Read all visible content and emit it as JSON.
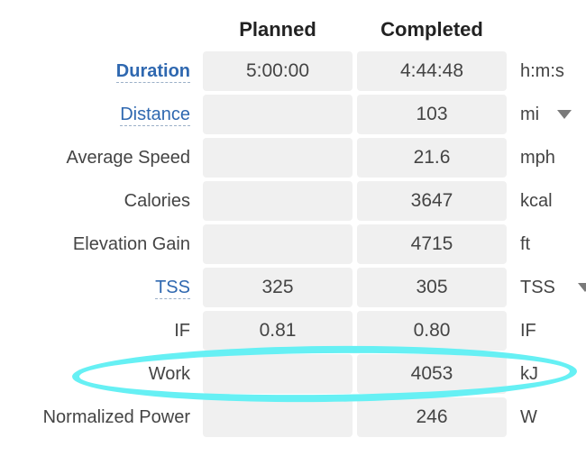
{
  "headers": {
    "planned": "Planned",
    "completed": "Completed"
  },
  "rows": [
    {
      "label": "Duration",
      "planned": "5:00:00",
      "completed": "4:44:48",
      "unit": "h:m:s"
    },
    {
      "label": "Distance",
      "planned": "",
      "completed": "103",
      "unit": "mi"
    },
    {
      "label": "Average Speed",
      "planned": "",
      "completed": "21.6",
      "unit": "mph"
    },
    {
      "label": "Calories",
      "planned": "",
      "completed": "3647",
      "unit": "kcal"
    },
    {
      "label": "Elevation Gain",
      "planned": "",
      "completed": "4715",
      "unit": "ft"
    },
    {
      "label": "TSS",
      "planned": "325",
      "completed": "305",
      "unit": "TSS"
    },
    {
      "label": "IF",
      "planned": "0.81",
      "completed": "0.80",
      "unit": "IF"
    },
    {
      "label": "Work",
      "planned": "",
      "completed": "4053",
      "unit": "kJ"
    },
    {
      "label": "Normalized Power",
      "planned": "",
      "completed": "246",
      "unit": "W"
    }
  ],
  "colors": {
    "link": "#2f68b0",
    "highlight": "#66f0f4",
    "cell_bg": "#f0f0f0"
  },
  "icons": {
    "unit_dropdown": "caret-down-icon",
    "highlight": "ellipse-annotation"
  }
}
